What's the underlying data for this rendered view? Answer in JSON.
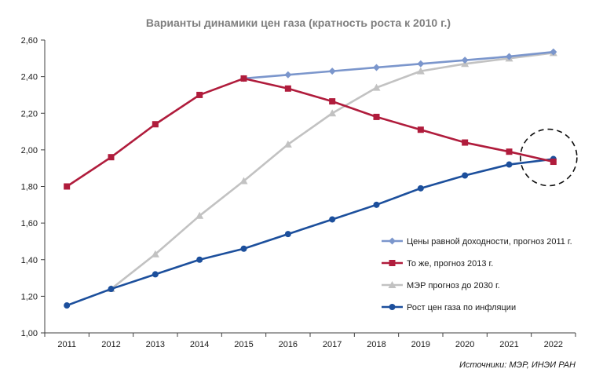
{
  "chart_data": {
    "type": "line",
    "title": "Варианты динамики цен газа (кратность роста к 2010 г.)",
    "categories": [
      "2011",
      "2012",
      "2013",
      "2014",
      "2015",
      "2016",
      "2017",
      "2018",
      "2019",
      "2020",
      "2021",
      "2022"
    ],
    "ylim": [
      1.0,
      2.6
    ],
    "yticks": [
      "1,00",
      "1,20",
      "1,40",
      "1,60",
      "1,80",
      "2,00",
      "2,20",
      "2,40",
      "2,60"
    ],
    "grid": false,
    "legend_position": "right",
    "series": [
      {
        "name": "Цены равной доходности, прогноз 2011 г.",
        "color": "#7b96cc",
        "marker": "diamond",
        "values": [
          null,
          null,
          null,
          null,
          2.39,
          2.41,
          2.43,
          2.45,
          2.47,
          2.49,
          2.51,
          2.535
        ]
      },
      {
        "name": "То же, прогноз 2013 г.",
        "color": "#b01c3c",
        "marker": "square",
        "values": [
          1.8,
          1.96,
          2.14,
          2.3,
          2.39,
          2.335,
          2.265,
          2.18,
          2.11,
          2.04,
          1.99,
          1.935
        ]
      },
      {
        "name": "МЭР прогноз до 2030 г.",
        "color": "#c2c2c2",
        "marker": "triangle",
        "values": [
          null,
          1.24,
          1.43,
          1.64,
          1.83,
          2.03,
          2.2,
          2.34,
          2.43,
          2.47,
          2.5,
          2.53
        ]
      },
      {
        "name": "Рост цен газа по инфляции",
        "color": "#1c4f9c",
        "marker": "circle",
        "values": [
          1.15,
          1.24,
          1.32,
          1.4,
          1.46,
          1.54,
          1.62,
          1.7,
          1.79,
          1.86,
          1.92,
          1.95
        ]
      }
    ],
    "annotation": {
      "type": "dashed-circle",
      "x": "2022",
      "y": 1.95
    },
    "source": "Источники: МЭР, ИНЭИ РАН"
  }
}
